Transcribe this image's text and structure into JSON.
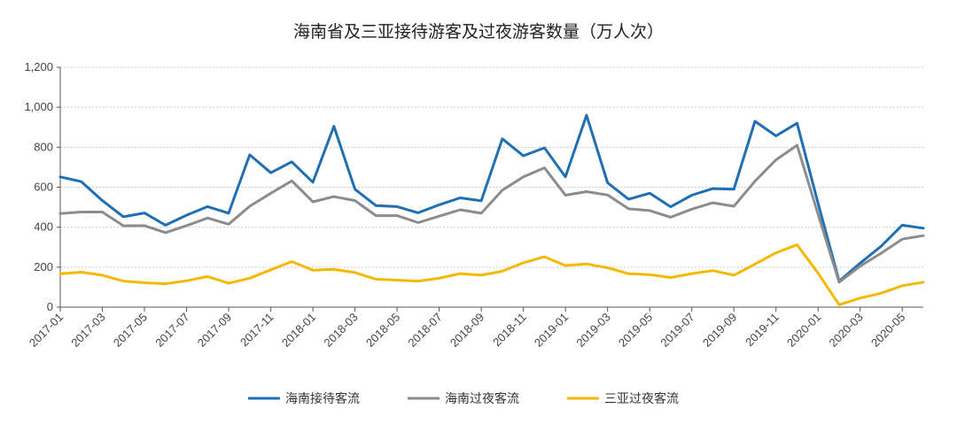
{
  "chart_data": {
    "type": "line",
    "title": "海南省及三亚接待游客及过夜游客数量（万人次）",
    "xlabel": "",
    "ylabel": "",
    "ylim": [
      0,
      1200
    ],
    "yticks": [
      "0",
      "200",
      "400",
      "600",
      "800",
      "1,000",
      "1,200"
    ],
    "grid": true,
    "legend_position": "bottom",
    "x": [
      "2017-01",
      "2017-02",
      "2017-03",
      "2017-04",
      "2017-05",
      "2017-06",
      "2017-07",
      "2017-08",
      "2017-09",
      "2017-10",
      "2017-11",
      "2017-12",
      "2018-01",
      "2018-02",
      "2018-03",
      "2018-04",
      "2018-05",
      "2018-06",
      "2018-07",
      "2018-08",
      "2018-09",
      "2018-10",
      "2018-11",
      "2018-12",
      "2019-01",
      "2019-02",
      "2019-03",
      "2019-04",
      "2019-05",
      "2019-06",
      "2019-07",
      "2019-08",
      "2019-09",
      "2019-10",
      "2019-11",
      "2019-12",
      "2020-01",
      "2020-02",
      "2020-03",
      "2020-04",
      "2020-05",
      "2020-06"
    ],
    "xtick_labels": [
      "2017-01",
      "2017-03",
      "2017-05",
      "2017-07",
      "2017-09",
      "2017-11",
      "2018-01",
      "2018-03",
      "2018-05",
      "2018-07",
      "2018-09",
      "2018-11",
      "2019-01",
      "2019-03",
      "2019-05",
      "2019-07",
      "2019-09",
      "2019-11",
      "2020-01",
      "2020-03",
      "2020-05"
    ],
    "series": [
      {
        "name": "海南接待客流",
        "color": "#1f6fb4",
        "values": [
          652,
          628,
          533,
          452,
          471,
          410,
          460,
          503,
          470,
          762,
          672,
          727,
          625,
          905,
          590,
          508,
          503,
          472,
          512,
          547,
          532,
          842,
          757,
          797,
          652,
          960,
          622,
          540,
          570,
          502,
          560,
          593,
          590,
          930,
          857,
          920,
          520,
          130,
          220,
          305,
          410,
          395
        ]
      },
      {
        "name": "海南过夜客流",
        "color": "#8c8c8c",
        "values": [
          468,
          476,
          476,
          407,
          408,
          373,
          408,
          446,
          415,
          505,
          570,
          632,
          527,
          553,
          533,
          458,
          458,
          423,
          455,
          487,
          470,
          585,
          652,
          697,
          560,
          578,
          561,
          492,
          483,
          450,
          490,
          522,
          505,
          630,
          737,
          810,
          465,
          125,
          205,
          270,
          340,
          358
        ]
      },
      {
        "name": "三亚过夜客流",
        "color": "#f5b800",
        "values": [
          167,
          175,
          160,
          130,
          122,
          117,
          132,
          153,
          120,
          145,
          187,
          228,
          185,
          189,
          173,
          140,
          135,
          130,
          145,
          168,
          160,
          180,
          222,
          252,
          208,
          216,
          197,
          167,
          163,
          148,
          168,
          183,
          160,
          215,
          272,
          312,
          170,
          12,
          45,
          70,
          107,
          125
        ]
      }
    ]
  }
}
